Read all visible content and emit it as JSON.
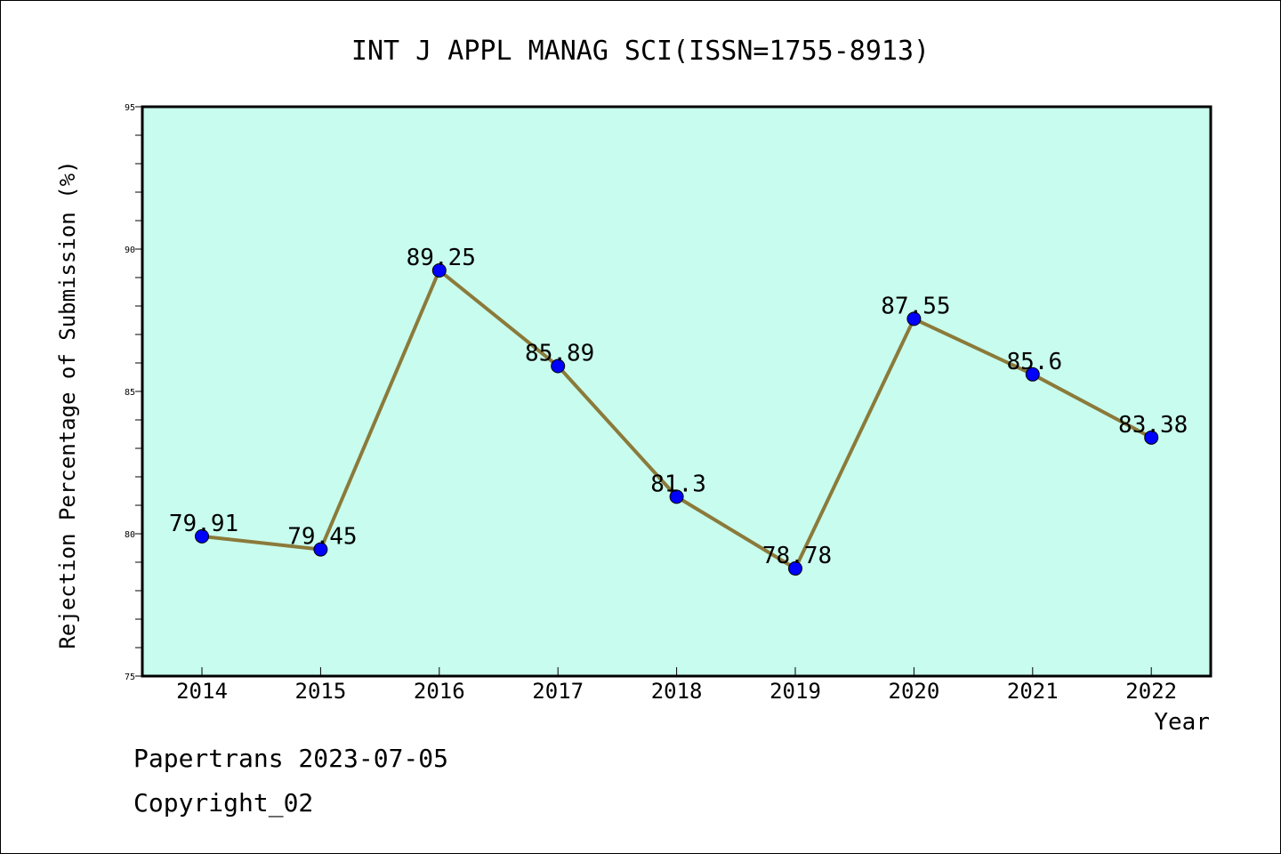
{
  "chart_data": {
    "type": "line",
    "title": "INT J APPL MANAG SCI(ISSN=1755-8913)",
    "xlabel": "Year",
    "ylabel": "Rejection Percentage of Submission (%)",
    "categories": [
      "2014",
      "2015",
      "2016",
      "2017",
      "2018",
      "2019",
      "2020",
      "2021",
      "2022"
    ],
    "series": [
      {
        "values": [
          79.91,
          79.45,
          89.25,
          85.89,
          81.3,
          78.78,
          87.55,
          85.6,
          83.38
        ],
        "labels": [
          "79.91",
          "79.45",
          "89.25",
          "85.89",
          "81.3",
          "78.78",
          "87.55",
          "85.6",
          "83.38"
        ]
      }
    ],
    "ylim": [
      75,
      95
    ],
    "yticks": [
      "75",
      "80",
      "85",
      "90",
      "95"
    ],
    "grid": false,
    "colors": {
      "plot_background": "#c8fcee",
      "line": "#8b7a3a",
      "marker": "#0000ff"
    }
  },
  "footer": {
    "line1": "Papertrans 2023-07-05",
    "line2": "Copyright_02"
  }
}
